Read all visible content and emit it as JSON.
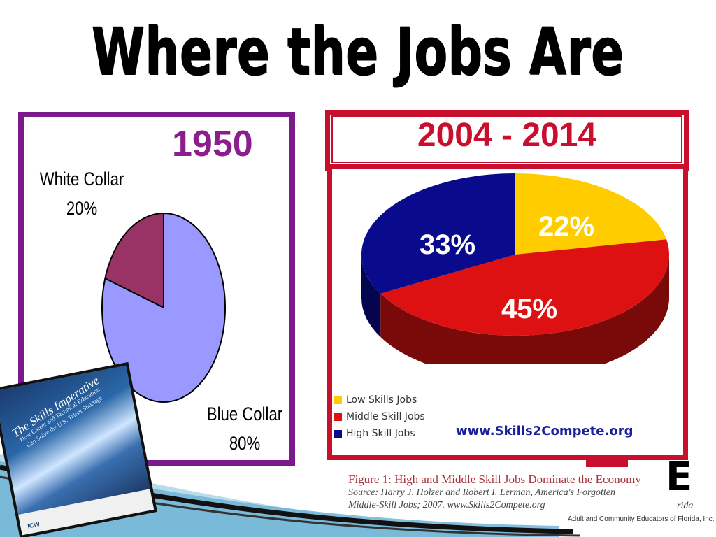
{
  "slide": {
    "title": "Where the Jobs Are"
  },
  "left_chart_header": "1950",
  "right_chart_header": "2004 - 2014",
  "labels_1950": {
    "white_collar_name": "White Collar",
    "white_collar_pct": "20%",
    "blue_collar_name": "Blue Collar",
    "blue_collar_pct": "80%"
  },
  "labels_2004": {
    "low": "22%",
    "middle": "45%",
    "high": "33%"
  },
  "legend": [
    {
      "label": "Low Skills Jobs",
      "color": "#ffcc00"
    },
    {
      "label": "Middle Skill Jobs",
      "color": "#dd1111"
    },
    {
      "label": "High Skill Jobs",
      "color": "#0a0a8c"
    }
  ],
  "website": "www.Skills2Compete.org",
  "book": {
    "title": "The Skills Imperative",
    "subtitle": "How Career and Technical Education Can Solve the U.S. Talent Shortage",
    "logo": "ICW"
  },
  "caption": {
    "title": "Figure 1: High and Middle Skill Jobs Dominate the Economy",
    "source_line1": "Source: Harry J. Holzer and Robert I. Lerman, America's Forgotten",
    "source_line2": "Middle-Skill Jobs; 2007. www.Skills2Compete.org"
  },
  "org_logo": {
    "letters": "E",
    "state": "rida",
    "footer": "Adult and Community Educators of Florida, Inc."
  },
  "chart_data": [
    {
      "type": "pie",
      "title": "1950",
      "categories": [
        "White Collar",
        "Blue Collar"
      ],
      "values": [
        20,
        80
      ],
      "colors": [
        "#993366",
        "#9999ff"
      ]
    },
    {
      "type": "pie",
      "title": "2004 - 2014",
      "categories": [
        "Low Skills Jobs",
        "Middle Skill Jobs",
        "High Skill Jobs"
      ],
      "values": [
        22,
        45,
        33
      ],
      "colors": [
        "#ffcc00",
        "#dd1111",
        "#0a0a8c"
      ],
      "legend": "bottom-left"
    }
  ]
}
